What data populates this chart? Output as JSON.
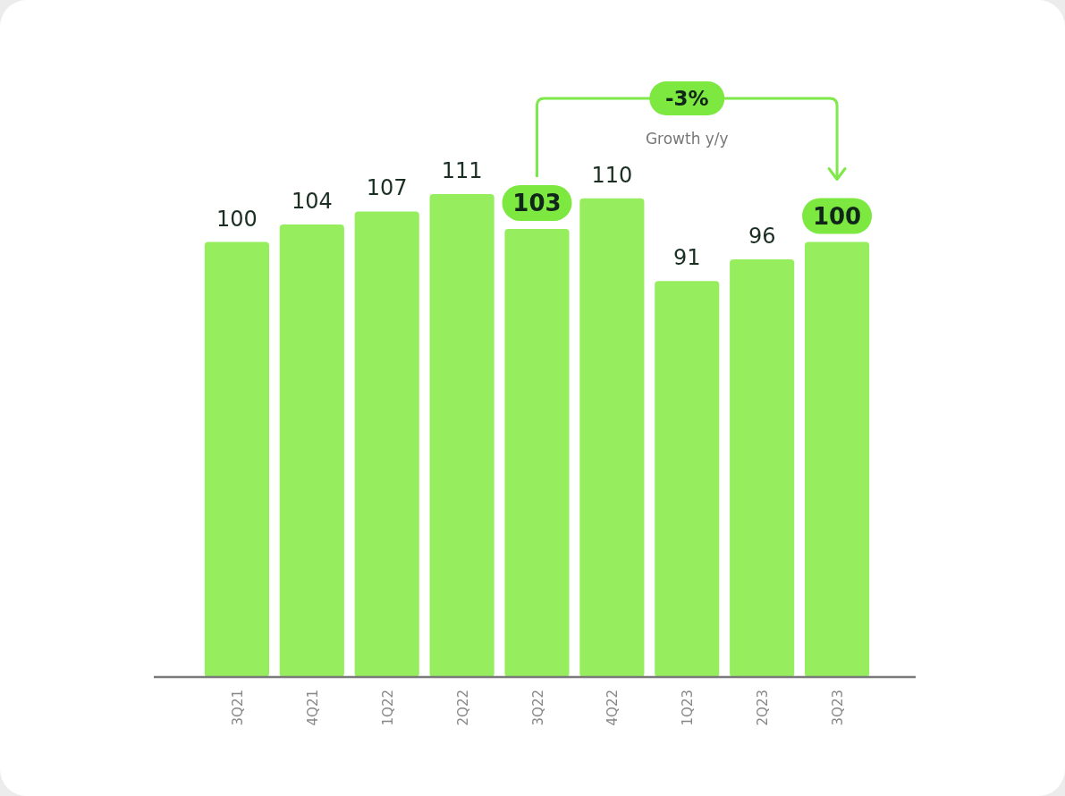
{
  "chart_data": {
    "type": "bar",
    "categories": [
      "3Q21",
      "4Q21",
      "1Q22",
      "2Q22",
      "3Q22",
      "4Q22",
      "1Q23",
      "2Q23",
      "3Q23"
    ],
    "values": [
      100,
      104,
      107,
      111,
      103,
      110,
      91,
      96,
      100
    ],
    "color": "#96ee5f",
    "data_labels": true,
    "annotations": [
      "-3%",
      "Growth y/y"
    ]
  }
}
